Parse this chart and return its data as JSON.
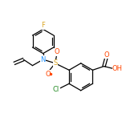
{
  "background": "#ffffff",
  "bond_color": "#000000",
  "atom_colors": {
    "F": "#daa520",
    "N": "#1e90ff",
    "S": "#daa520",
    "O": "#ff4500",
    "Cl": "#228b22",
    "C": "#000000",
    "H": "#000000"
  },
  "figsize": [
    1.52,
    1.52
  ],
  "dpi": 100,
  "lw": 0.9,
  "fontsize": 6.0
}
